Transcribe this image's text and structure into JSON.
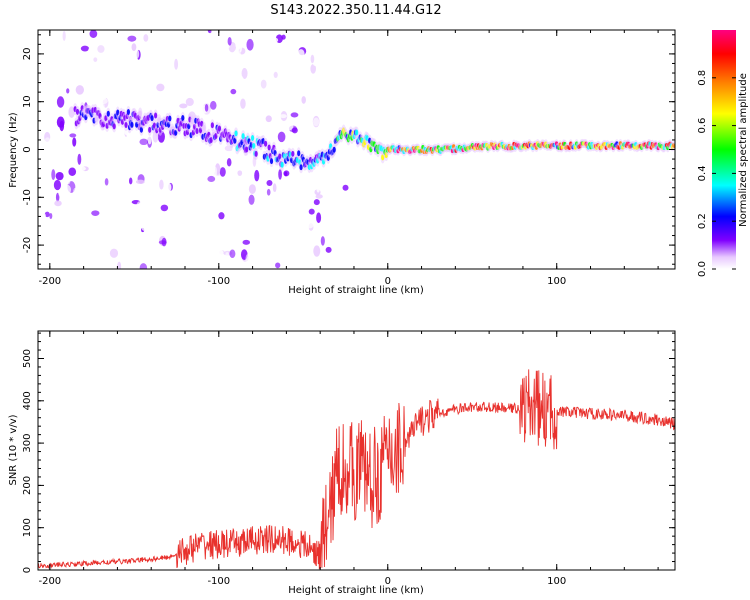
{
  "title": "S143.2022.350.11.44.G12",
  "chart_data": [
    {
      "type": "heatmap",
      "xlabel": "Height of straight line (km)",
      "ylabel": "Frequency (Hz)",
      "xlim": [
        -207,
        170
      ],
      "ylim": [
        -25,
        25
      ],
      "x_ticks": [
        -200,
        -100,
        0,
        100
      ],
      "y_ticks": [
        -20,
        -10,
        0,
        10,
        20
      ],
      "colorbar": {
        "label": "Normalized spectral amplitude",
        "range": [
          0,
          1
        ],
        "ticks": [
          "0.0",
          "0.2",
          "0.4",
          "0.6",
          "0.8"
        ],
        "colors": [
          "#ffffff",
          "#e8c8ff",
          "#8000ff",
          "#0000ff",
          "#00ffff",
          "#00ff00",
          "#ffff00",
          "#ff8000",
          "#ff0000",
          "#ff0080"
        ]
      },
      "ridge_centerline": {
        "x": [
          -180,
          -150,
          -120,
          -100,
          -80,
          -60,
          -45,
          -35,
          -28,
          -20,
          -10,
          -3,
          0,
          30,
          60,
          90,
          120,
          150,
          170
        ],
        "y": [
          7,
          6,
          5,
          3,
          1,
          -2,
          -3,
          -1,
          3,
          3,
          1,
          -1,
          0,
          0,
          0.6,
          0.8,
          0.8,
          0.8,
          0.8
        ]
      }
    },
    {
      "type": "line",
      "xlabel": "Height of straight line (km)",
      "ylabel": "SNR (10 * v/v)",
      "xlim": [
        -207,
        170
      ],
      "ylim": [
        0,
        565
      ],
      "x_ticks": [
        -200,
        -100,
        0,
        100
      ],
      "y_ticks": [
        0,
        100,
        200,
        300,
        400,
        500
      ],
      "color": "#e8312d",
      "series": [
        {
          "x": [
            -207,
            -180,
            -150,
            -130,
            -120,
            -110,
            -100,
            -90,
            -80,
            -70,
            -60,
            -50,
            -40,
            -35,
            -30,
            -25,
            -20,
            -15,
            -10,
            -5,
            0,
            10,
            20,
            30,
            40,
            50,
            60,
            70,
            80,
            85,
            90,
            95,
            100,
            110,
            120,
            140,
            160,
            170
          ],
          "y": [
            10,
            15,
            22,
            30,
            45,
            60,
            60,
            62,
            70,
            72,
            70,
            60,
            35,
            120,
            230,
            250,
            230,
            250,
            210,
            230,
            270,
            300,
            355,
            370,
            380,
            385,
            385,
            382,
            383,
            390,
            382,
            370,
            375,
            372,
            370,
            365,
            355,
            345
          ]
        }
      ]
    }
  ]
}
